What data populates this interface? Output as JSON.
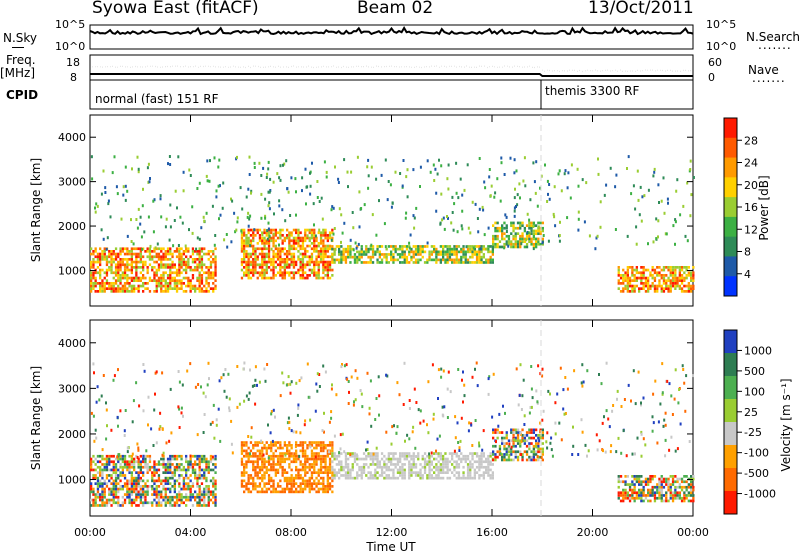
{
  "header": {
    "station": "Syowa East (fitACF)",
    "beam": "Beam 02",
    "date": "13/Oct/2011"
  },
  "left_labels": {
    "nsky": "N.Sky",
    "freq": "Freq.",
    "mhz": "[MHz]",
    "cpid": "CPID"
  },
  "right_labels": {
    "nsearch": "N.Search",
    "nave": "Nave",
    "dots": "......."
  },
  "top_axes": {
    "noise_left_top": "10^5",
    "noise_left_bottom": "10^0",
    "noise_right_top": "10^5",
    "noise_right_bottom": "10^0",
    "freq_left_top": "18",
    "freq_left_bottom": "8",
    "nave_right_top": "60",
    "nave_right_bottom": "0"
  },
  "cpid_modes": [
    "normal (fast) 151 RF",
    "themis 3300 RF"
  ],
  "power_colorbar": {
    "title": "Power [dB]",
    "ticks": [
      "28",
      "24",
      "20",
      "16",
      "12",
      "8",
      "4"
    ],
    "colors": [
      "#ff1a00",
      "#ff5a00",
      "#ff9a00",
      "#ffd000",
      "#9acd32",
      "#3cb043",
      "#2e8b57",
      "#1e5aa8",
      "#0033ff"
    ]
  },
  "velocity_colorbar": {
    "title": "Velocity [m s⁻¹]",
    "ticks": [
      "1000",
      "500",
      "100",
      "25",
      "-25",
      "-100",
      "-500",
      "-1000"
    ],
    "colors": [
      "#2040c0",
      "#2e7d52",
      "#4caf50",
      "#9acd32",
      "#c8c8c8",
      "#ffa000",
      "#ff6a00",
      "#ff1a00"
    ]
  },
  "chart_data": [
    {
      "type": "heatmap",
      "panel": "power",
      "ylabel": "Slant Range [km]",
      "ylim": [
        200,
        4500
      ],
      "yticks": [
        "1000",
        "2000",
        "3000",
        "4000"
      ],
      "xlim": [
        "00:00",
        "24:00"
      ],
      "bands": [
        {
          "t0": 0,
          "t1": 5,
          "r0": 500,
          "r1": 1500,
          "level": "high"
        },
        {
          "t0": 6,
          "t1": 9.6,
          "r0": 800,
          "r1": 1900,
          "level": "high"
        },
        {
          "t0": 9.6,
          "t1": 16,
          "r0": 1150,
          "r1": 1550,
          "level": "medium"
        },
        {
          "t0": 16,
          "t1": 18,
          "r0": 1500,
          "r1": 2100,
          "level": "medium"
        },
        {
          "t0": 21,
          "t1": 24,
          "r0": 500,
          "r1": 1100,
          "level": "high"
        }
      ]
    },
    {
      "type": "heatmap",
      "panel": "velocity",
      "ylabel": "Slant Range [km]",
      "xlabel": "Time UT",
      "ylim": [
        200,
        4500
      ],
      "yticks": [
        "1000",
        "2000",
        "3000",
        "4000"
      ],
      "xticks": [
        "00:00",
        "04:00",
        "08:00",
        "12:00",
        "16:00",
        "20:00",
        "00:00"
      ],
      "bands": [
        {
          "t0": 0,
          "t1": 5,
          "r0": 400,
          "r1": 1500,
          "velocity_class": "mixed"
        },
        {
          "t0": 6,
          "t1": 9.6,
          "r0": 700,
          "r1": 1800,
          "velocity_class": "negative"
        },
        {
          "t0": 9.6,
          "t1": 16,
          "r0": 1000,
          "r1": 1600,
          "velocity_class": "ground-scatter"
        },
        {
          "t0": 16,
          "t1": 18,
          "r0": 1400,
          "r1": 2100,
          "velocity_class": "mixed"
        },
        {
          "t0": 21,
          "t1": 24,
          "r0": 500,
          "r1": 1100,
          "velocity_class": "mixed"
        }
      ]
    }
  ],
  "xaxis": {
    "ticks": [
      "00:00",
      "04:00",
      "08:00",
      "12:00",
      "16:00",
      "20:00",
      "00:00"
    ],
    "label": "Time UT"
  }
}
